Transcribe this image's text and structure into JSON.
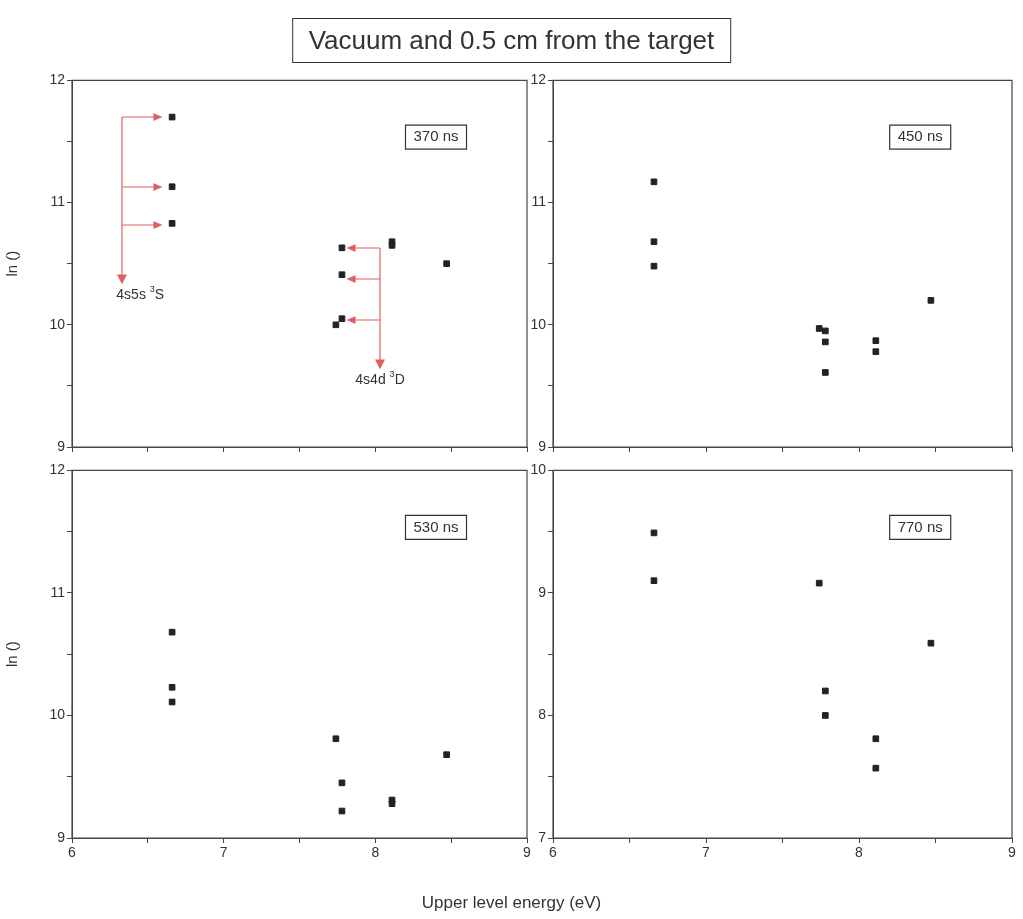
{
  "chart_data": [
    {
      "type": "scatter",
      "title": "Vacuum and 0.5 cm from the target",
      "ylabel": "ln ()",
      "color": "#222222",
      "marker": "square",
      "x": [
        6.66,
        6.66,
        6.66,
        7.78,
        7.78,
        7.78,
        7.74,
        8.11,
        8.11,
        8.47
      ],
      "values": [
        11.7,
        11.13,
        10.83,
        10.63,
        10.41,
        10.05,
        10.0,
        10.68,
        10.65,
        10.5
      ],
      "xlim": [
        6,
        9
      ],
      "xticks": [
        6,
        {
          "value": 6.5,
          "label": null
        },
        7,
        {
          "value": 7.5,
          "label": null
        },
        8,
        {
          "value": 8.5,
          "label": null
        },
        9
      ],
      "ylim": [
        9,
        12
      ],
      "yticks": [
        9,
        {
          "value": 9.5,
          "label": null
        },
        10,
        {
          "value": 10.5,
          "label": null
        },
        11,
        {
          "value": 11.5,
          "label": null
        },
        12
      ],
      "tick_labels": "y",
      "annotations": [
        "370 ns",
        "4s5s $^{3}$S",
        "4s4d $^{3}$D"
      ]
    },
    {
      "type": "scatter",
      "color": "#222222",
      "marker": "square",
      "x": [
        6.66,
        6.66,
        6.66,
        7.74,
        7.78,
        7.78,
        7.78,
        8.11,
        8.11,
        8.47
      ],
      "values": [
        11.17,
        10.68,
        10.48,
        9.97,
        9.95,
        9.86,
        9.61,
        9.87,
        9.78,
        10.2
      ],
      "xlim": [
        6,
        9
      ],
      "xticks": [
        6,
        {
          "value": 6.5,
          "label": null
        },
        7,
        {
          "value": 7.5,
          "label": null
        },
        8,
        {
          "value": 8.5,
          "label": null
        },
        9
      ],
      "ylim": [
        9,
        12
      ],
      "yticks": [
        9,
        {
          "value": 9.5,
          "label": null
        },
        10,
        {
          "value": 10.5,
          "label": null
        },
        11,
        {
          "value": 11.5,
          "label": null
        },
        12
      ],
      "tick_labels": "y",
      "annotations": [
        "450 ns"
      ]
    },
    {
      "type": "scatter",
      "ylabel": "ln ()",
      "xlabel": "Upper level energy (eV)",
      "color": "#222222",
      "marker": "square",
      "x": [
        6.66,
        6.66,
        6.66,
        7.74,
        7.78,
        7.78,
        8.11,
        8.11,
        8.47
      ],
      "values": [
        10.68,
        10.23,
        10.11,
        9.81,
        9.45,
        9.22,
        9.31,
        9.28,
        9.68
      ],
      "xlim": [
        6,
        9
      ],
      "xticks": [
        6,
        {
          "value": 6.5,
          "label": null
        },
        7,
        {
          "value": 7.5,
          "label": null
        },
        8,
        {
          "value": 8.5,
          "label": null
        },
        9
      ],
      "ylim": [
        9,
        12
      ],
      "yticks": [
        9,
        {
          "value": 9.5,
          "label": null
        },
        10,
        {
          "value": 10.5,
          "label": null
        },
        11,
        {
          "value": 11.5,
          "label": null
        },
        12
      ],
      "annotations": [
        "530 ns"
      ]
    },
    {
      "type": "scatter",
      "color": "#222222",
      "marker": "square",
      "x": [
        6.66,
        6.66,
        7.74,
        8.47,
        7.78,
        7.78,
        8.11,
        8.11
      ],
      "values": [
        9.49,
        9.1,
        9.08,
        8.59,
        8.2,
        8.0,
        7.81,
        7.57
      ],
      "xlim": [
        6,
        9
      ],
      "xticks": [
        6,
        {
          "value": 6.5,
          "label": null
        },
        7,
        {
          "value": 7.5,
          "label": null
        },
        8,
        {
          "value": 8.5,
          "label": null
        },
        9
      ],
      "ylim": [
        7,
        10
      ],
      "yticks": [
        7,
        {
          "value": 7.5,
          "label": null
        },
        8,
        {
          "value": 8.5,
          "label": null
        },
        9,
        {
          "value": 9.5,
          "label": null
        },
        10
      ],
      "annotations": [
        "770 ns"
      ]
    }
  ]
}
